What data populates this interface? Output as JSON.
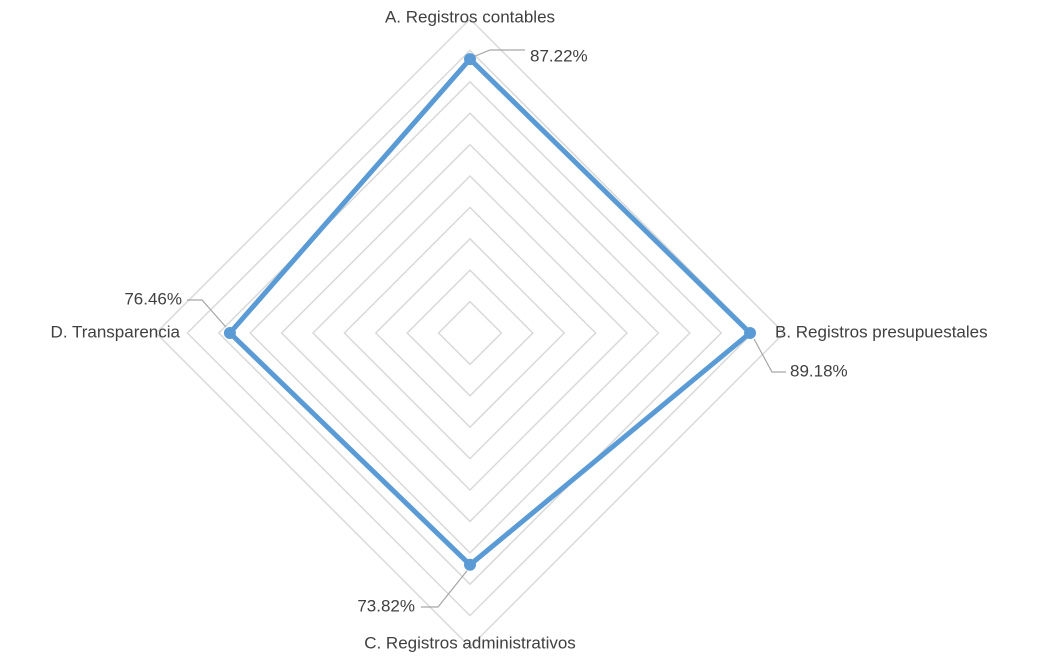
{
  "chart_data": {
    "type": "radar",
    "categories": [
      "A. Registros contables",
      "B. Registros presupuestales",
      "C. Registros administrativos",
      "D. Transparencia"
    ],
    "values": [
      87.22,
      89.18,
      73.82,
      76.46
    ],
    "value_labels": [
      "87.22%",
      "89.18%",
      "73.82%",
      "76.46%"
    ],
    "color": "#5b9bd5",
    "rlim": [
      0,
      100
    ],
    "rticks": [
      10,
      20,
      30,
      40,
      50,
      60,
      70,
      80,
      90,
      100
    ],
    "grid": true
  }
}
